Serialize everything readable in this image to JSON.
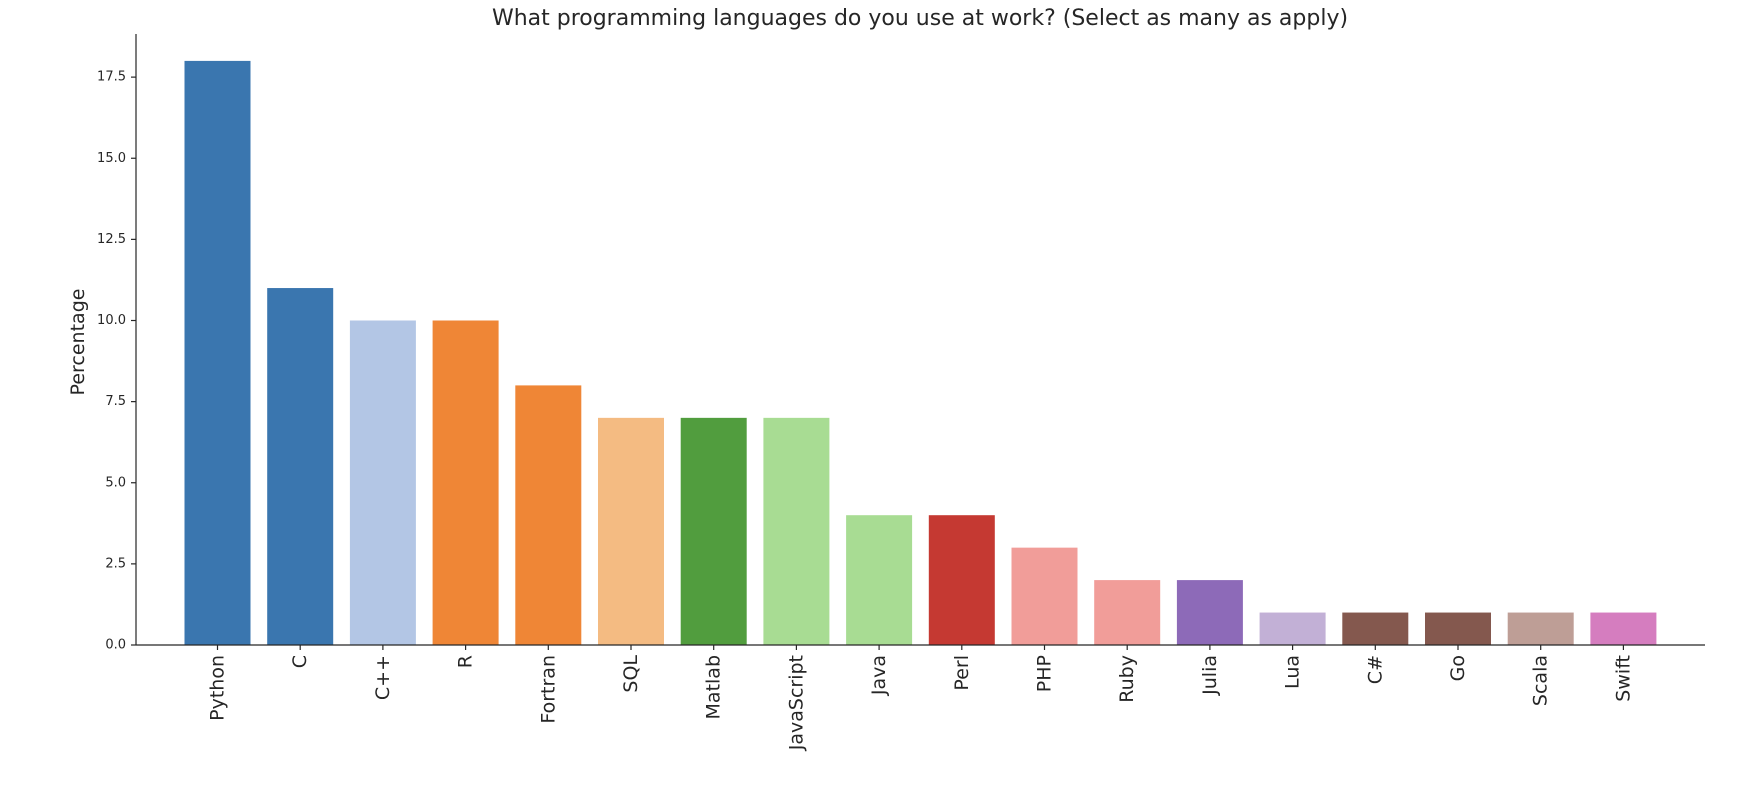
{
  "chart_data": {
    "type": "bar",
    "title": "What programming languages do you use at work? (Select as many as apply)",
    "xlabel": "",
    "ylabel": "Percentage",
    "ylim": [
      0,
      18.9
    ],
    "yticks": [
      "0.0",
      "2.5",
      "5.0",
      "7.5",
      "10.0",
      "12.5",
      "15.0",
      "17.5"
    ],
    "grid": false,
    "legend": "none",
    "categories": [
      "Python",
      "C",
      "C++",
      "R",
      "Fortran",
      "SQL",
      "Matlab",
      "JavaScript",
      "Java",
      "Perl",
      "PHP",
      "Ruby",
      "Julia",
      "Lua",
      "C#",
      "Go",
      "Scala",
      "Swift"
    ],
    "values": [
      18,
      11,
      10,
      10,
      8,
      7,
      7,
      7,
      4,
      4,
      3,
      2,
      2,
      1,
      1,
      1,
      1,
      1
    ],
    "colors": [
      "#3a76af",
      "#3a76af",
      "#b3c6e5",
      "#ef8636",
      "#ef8636",
      "#f4bb82",
      "#519d3e",
      "#a8dc93",
      "#a8dc93",
      "#c53932",
      "#f19d99",
      "#f19d99",
      "#8d6ab8",
      "#c2b0d6",
      "#84584e",
      "#84584e",
      "#be9e96",
      "#d57dbf"
    ]
  }
}
